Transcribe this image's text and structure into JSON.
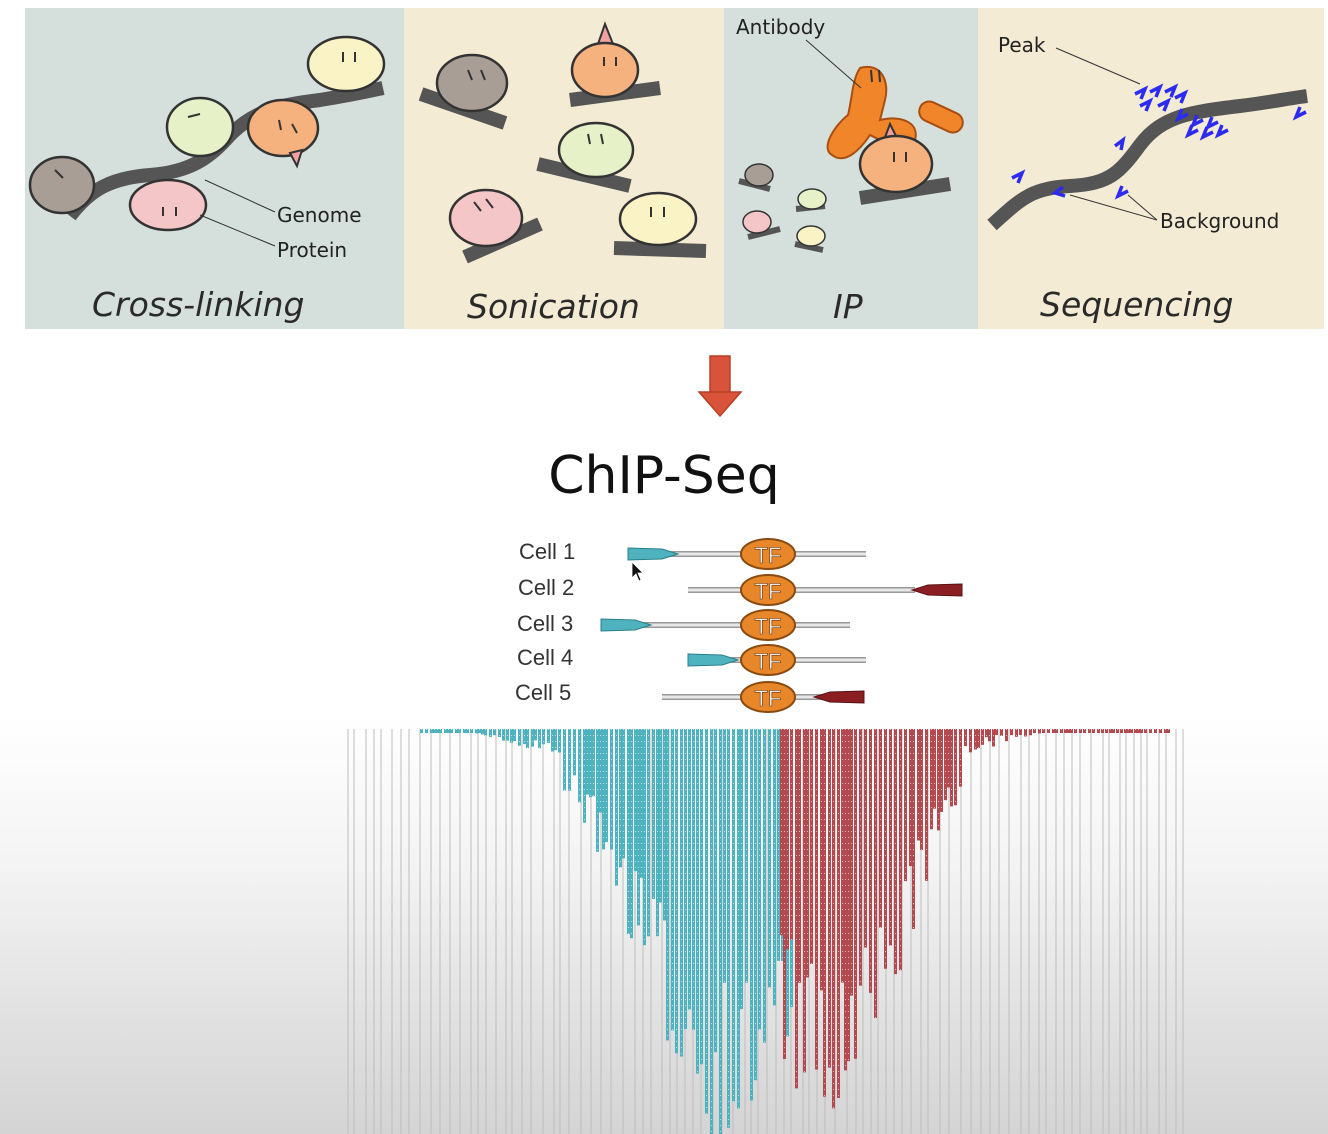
{
  "panels": [
    {
      "title": "Cross-linking",
      "bg": "#d5dfdb"
    },
    {
      "title": "Sonication",
      "bg": "#f3ebd3"
    },
    {
      "title": "IP",
      "bg": "#d5dfdb"
    },
    {
      "title": "Sequencing",
      "bg": "#f3ebd3"
    }
  ],
  "labels": {
    "genome": "Genome",
    "protein": "Protein",
    "antibody": "Antibody",
    "peak": "Peak",
    "background": "Background"
  },
  "main_title": "ChIP-Seq",
  "cells": [
    {
      "label": "Cell 1",
      "tf": "TF"
    },
    {
      "label": "Cell 2",
      "tf": "TF"
    },
    {
      "label": "Cell 3",
      "tf": "TF"
    },
    {
      "label": "Cell 4",
      "tf": "TF"
    },
    {
      "label": "Cell 5",
      "tf": "TF"
    }
  ],
  "colors": {
    "forward_read": "#4fb3bf",
    "reverse_read": "#b24a50",
    "tf": "#e8872a",
    "arrow": "#d9533b",
    "genome": "#555555",
    "sequence_read": "#2c2cf0"
  }
}
